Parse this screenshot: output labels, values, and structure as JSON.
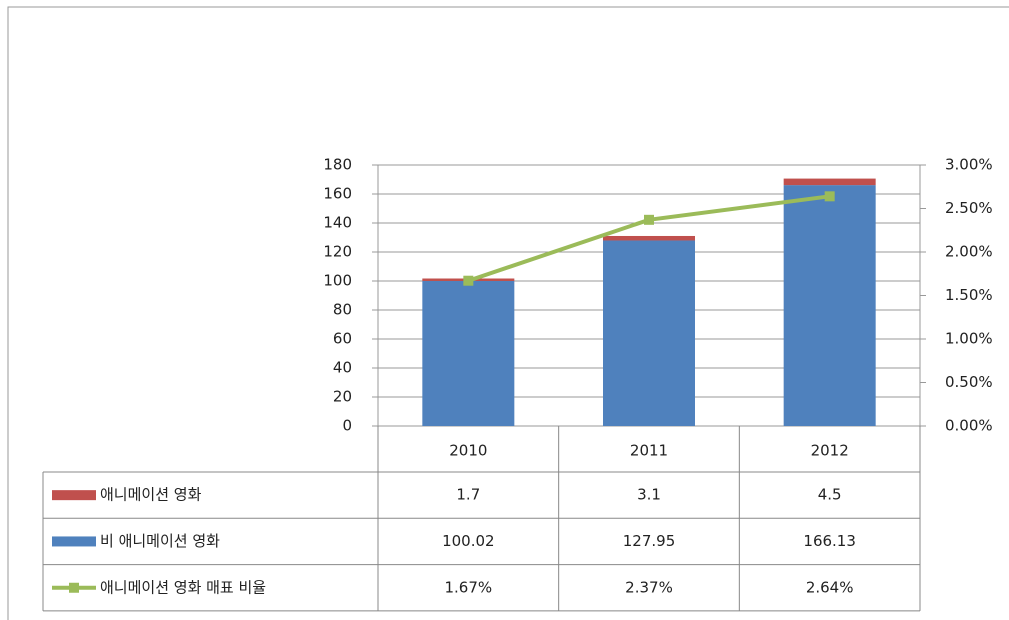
{
  "chart_data": {
    "type": "bar",
    "categories": [
      "2010",
      "2011",
      "2012"
    ],
    "series": [
      {
        "name": "애니메이션 영화",
        "color": "#c0504d",
        "values": [
          1.7,
          3.1,
          4.5
        ]
      },
      {
        "name": "비 애니메이션 영화",
        "color": "#4f81bd",
        "values": [
          100.02,
          127.95,
          166.13
        ]
      },
      {
        "name": "애니메이션 영화 매표 비율",
        "type": "line",
        "axis": "y2",
        "color": "#9bbb59",
        "values": [
          1.67,
          2.37,
          2.64
        ],
        "value_labels": [
          "1.67%",
          "2.37%",
          "2.64%"
        ]
      }
    ],
    "ylim": [
      0,
      180
    ],
    "yticks": [
      0,
      20,
      40,
      60,
      80,
      100,
      120,
      140,
      160,
      180
    ],
    "y2lim": [
      0,
      3
    ],
    "y2ticks": [
      {
        "value": 0,
        "label": "0.00%"
      },
      {
        "value": 0.5,
        "label": "0.50%"
      },
      {
        "value": 1,
        "label": "1.00%"
      },
      {
        "value": 1.5,
        "label": "1.50%"
      },
      {
        "value": 2,
        "label": "2.00%"
      },
      {
        "value": 2.5,
        "label": "2.50%"
      },
      {
        "value": 3,
        "label": "3.00%"
      }
    ],
    "grid": true,
    "data_table": true
  }
}
